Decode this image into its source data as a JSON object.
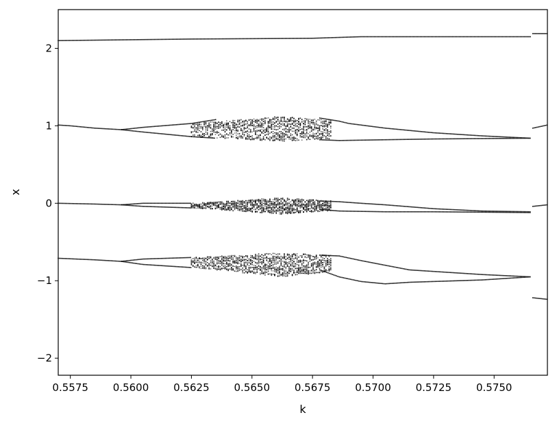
{
  "chart_data": {
    "type": "scatter",
    "title": "",
    "xlabel": "k",
    "ylabel": "x",
    "xlim": [
      0.557,
      0.5772
    ],
    "ylim": [
      -2.22,
      2.5
    ],
    "xticks": [
      "0.5575",
      "0.5600",
      "0.5625",
      "0.5650",
      "0.5675",
      "0.5700",
      "0.5725",
      "0.5750"
    ],
    "xtick_values": [
      0.5575,
      0.56,
      0.5625,
      0.565,
      0.5675,
      0.57,
      0.5725,
      0.575
    ],
    "yticks": [
      "−2",
      "−1",
      "0",
      "1",
      "2"
    ],
    "ytick_values": [
      -2,
      -1,
      0,
      1,
      2
    ],
    "grid": false,
    "marker_color": "#000000",
    "branches": [
      {
        "curves": [
          [
            [
              0.557,
              2.1
            ],
            [
              0.5625,
              2.12
            ],
            [
              0.5675,
              2.13
            ],
            [
              0.5695,
              2.15
            ],
            [
              0.5765,
              2.15
            ]
          ]
        ],
        "chaos": null
      },
      {
        "curves": [
          [
            [
              0.557,
              1.01
            ],
            [
              0.5575,
              1.0
            ],
            [
              0.5585,
              0.97
            ],
            [
              0.5596,
              0.95
            ],
            [
              0.5605,
              0.98
            ],
            [
              0.5625,
              1.03
            ],
            [
              0.5635,
              1.08
            ]
          ],
          [
            [
              0.5596,
              0.95
            ],
            [
              0.5605,
              0.92
            ],
            [
              0.5625,
              0.86
            ],
            [
              0.5635,
              0.84
            ]
          ],
          [
            [
              0.5678,
              1.1
            ],
            [
              0.5686,
              1.06
            ],
            [
              0.569,
              1.03
            ],
            [
              0.5695,
              1.01
            ],
            [
              0.5705,
              0.97
            ],
            [
              0.5715,
              0.94
            ],
            [
              0.5725,
              0.91
            ],
            [
              0.5745,
              0.87
            ],
            [
              0.5765,
              0.84
            ]
          ],
          [
            [
              0.5678,
              0.82
            ],
            [
              0.5686,
              0.81
            ],
            [
              0.5705,
              0.82
            ],
            [
              0.5725,
              0.83
            ],
            [
              0.5765,
              0.84
            ]
          ]
        ],
        "chaos": {
          "k_start": 0.5625,
          "k_end": 0.5683,
          "upper_start": 1.03,
          "upper_peak": 1.12,
          "lower_start": 0.86,
          "lower_peak": 0.8,
          "peak_k": 0.5662
        }
      },
      {
        "curves": [
          [
            [
              0.557,
              0.0
            ],
            [
              0.5585,
              -0.01
            ],
            [
              0.5596,
              -0.02
            ],
            [
              0.5605,
              0.0
            ],
            [
              0.5625,
              0.0
            ]
          ],
          [
            [
              0.5596,
              -0.02
            ],
            [
              0.5605,
              -0.04
            ],
            [
              0.5625,
              -0.06
            ]
          ],
          [
            [
              0.5678,
              0.03
            ],
            [
              0.5686,
              0.02
            ],
            [
              0.5695,
              0.0
            ],
            [
              0.5705,
              -0.02
            ],
            [
              0.5725,
              -0.07
            ],
            [
              0.5745,
              -0.1
            ],
            [
              0.5765,
              -0.11
            ]
          ],
          [
            [
              0.5678,
              -0.08
            ],
            [
              0.5686,
              -0.1
            ],
            [
              0.5705,
              -0.11
            ],
            [
              0.5725,
              -0.11
            ],
            [
              0.5765,
              -0.12
            ]
          ]
        ],
        "chaos": {
          "k_start": 0.5625,
          "k_end": 0.5683,
          "upper_start": 0.0,
          "upper_peak": 0.07,
          "lower_start": -0.06,
          "lower_peak": -0.14,
          "peak_k": 0.5662
        }
      },
      {
        "curves": [
          [
            [
              0.557,
              -0.71
            ],
            [
              0.5585,
              -0.73
            ],
            [
              0.5596,
              -0.75
            ],
            [
              0.5605,
              -0.72
            ],
            [
              0.5625,
              -0.7
            ]
          ],
          [
            [
              0.5596,
              -0.75
            ],
            [
              0.5605,
              -0.79
            ],
            [
              0.5625,
              -0.83
            ]
          ],
          [
            [
              0.5678,
              -0.67
            ],
            [
              0.5686,
              -0.68
            ],
            [
              0.5695,
              -0.74
            ],
            [
              0.5705,
              -0.8
            ],
            [
              0.5715,
              -0.86
            ],
            [
              0.5725,
              -0.88
            ],
            [
              0.5745,
              -0.92
            ],
            [
              0.5765,
              -0.95
            ]
          ],
          [
            [
              0.5678,
              -0.86
            ],
            [
              0.5686,
              -0.95
            ],
            [
              0.5695,
              -1.01
            ],
            [
              0.5705,
              -1.04
            ],
            [
              0.5715,
              -1.02
            ],
            [
              0.5725,
              -1.01
            ],
            [
              0.5745,
              -0.99
            ],
            [
              0.5765,
              -0.95
            ]
          ]
        ],
        "chaos": {
          "k_start": 0.5625,
          "k_end": 0.5683,
          "upper_start": -0.7,
          "upper_peak": -0.64,
          "lower_start": -0.83,
          "lower_peak": -0.95,
          "peak_k": 0.5662
        }
      }
    ],
    "right_segments": [
      {
        "k_start": 0.5766,
        "k_end": 0.5772,
        "y_start": 2.19,
        "y_end": 2.19
      },
      {
        "k_start": 0.5766,
        "k_end": 0.5772,
        "y_start": 0.97,
        "y_end": 1.01
      },
      {
        "k_start": 0.5766,
        "k_end": 0.5772,
        "y_start": -0.04,
        "y_end": -0.02
      },
      {
        "k_start": 0.5766,
        "k_end": 0.5772,
        "y_start": -1.22,
        "y_end": -1.24
      }
    ]
  }
}
